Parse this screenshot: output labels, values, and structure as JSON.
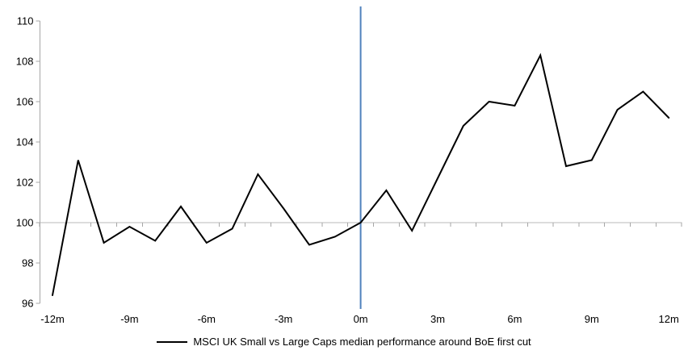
{
  "chart_data": {
    "type": "line",
    "title": "",
    "legend": "MSCI UK Small vs Large Caps median performance around BoE first cut",
    "x": [
      -12,
      -11,
      -10,
      -9,
      -8,
      -7,
      -6,
      -5,
      -4,
      -3,
      -2,
      -1,
      0,
      1,
      2,
      3,
      4,
      5,
      6,
      7,
      8,
      9,
      10,
      11,
      12
    ],
    "series": [
      {
        "name": "MSCI UK Small vs Large Caps median performance around BoE first cut",
        "color": "#000000",
        "values": [
          96.4,
          103.1,
          99.0,
          99.8,
          99.1,
          100.8,
          99.0,
          99.7,
          102.4,
          100.7,
          98.9,
          99.3,
          100.0,
          101.6,
          99.6,
          102.2,
          104.8,
          106.0,
          105.8,
          108.3,
          102.8,
          103.1,
          105.6,
          106.5,
          105.2
        ]
      }
    ],
    "x_tick_months": [
      -12,
      -9,
      -6,
      -3,
      0,
      3,
      6,
      9,
      12
    ],
    "x_tick_labels": [
      "-12m",
      "-9m",
      "-6m",
      "-3m",
      "0m",
      "3m",
      "6m",
      "9m",
      "12m"
    ],
    "y_ticks": [
      96,
      98,
      100,
      102,
      104,
      106,
      108,
      110
    ],
    "ylim": [
      96,
      110
    ],
    "xlim": [
      -12.5,
      12.5
    ],
    "baseline_value": 100,
    "event_line": {
      "x": 0,
      "color": "#4f81bd"
    },
    "grid": "baseline-only",
    "legend_position": "bottom",
    "colors": {
      "series_line": "#000000",
      "event_line": "#4f81bd",
      "y_axis": "#a6a6a6",
      "tick": "#a6a6a6",
      "baseline": "#b8b8b8",
      "text": "#000000"
    }
  }
}
